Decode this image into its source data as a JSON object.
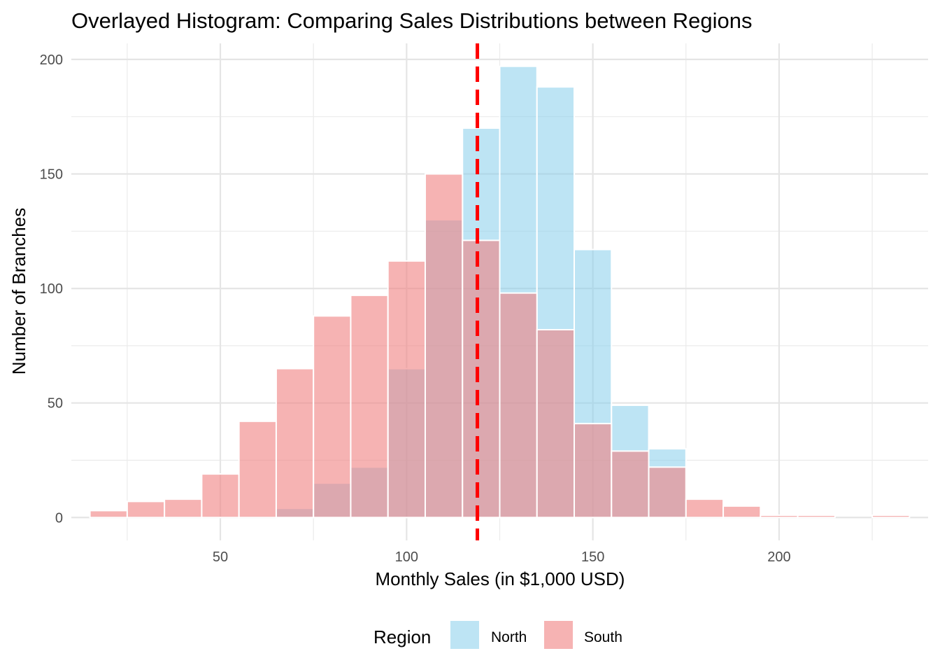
{
  "chart_data": {
    "type": "bar",
    "subtype": "overlayed-histogram",
    "title": "Overlayed Histogram: Comparing Sales Distributions between Regions",
    "xlabel": "Monthly Sales (in $1,000 USD)",
    "ylabel": "Number of Branches",
    "xlim": [
      10,
      240
    ],
    "ylim": [
      -10,
      207
    ],
    "xticks": [
      50,
      100,
      150,
      200
    ],
    "yticks": [
      0,
      50,
      100,
      150,
      200
    ],
    "grid": true,
    "bin_width": 10,
    "bin_starts": [
      15,
      25,
      35,
      45,
      55,
      65,
      75,
      85,
      95,
      105,
      115,
      125,
      135,
      145,
      155,
      165,
      175,
      185,
      195,
      205,
      215,
      225
    ],
    "series": [
      {
        "name": "North",
        "color": "#87CEEB",
        "opacity": 0.55,
        "values": [
          0,
          0,
          0,
          0,
          0,
          4,
          15,
          22,
          65,
          130,
          170,
          197,
          188,
          117,
          49,
          30,
          0,
          0,
          0,
          0,
          0,
          0
        ]
      },
      {
        "name": "South",
        "color": "#F08080",
        "opacity": 0.6,
        "values": [
          3,
          7,
          8,
          19,
          42,
          65,
          88,
          97,
          112,
          150,
          121,
          98,
          82,
          41,
          29,
          22,
          8,
          5,
          1,
          1,
          0,
          1
        ]
      }
    ],
    "reference_line": {
      "x": 119,
      "color": "#FF0000",
      "style": "dashed"
    },
    "legend": {
      "title": "Region",
      "position": "bottom",
      "entries": [
        "North",
        "South"
      ]
    }
  }
}
